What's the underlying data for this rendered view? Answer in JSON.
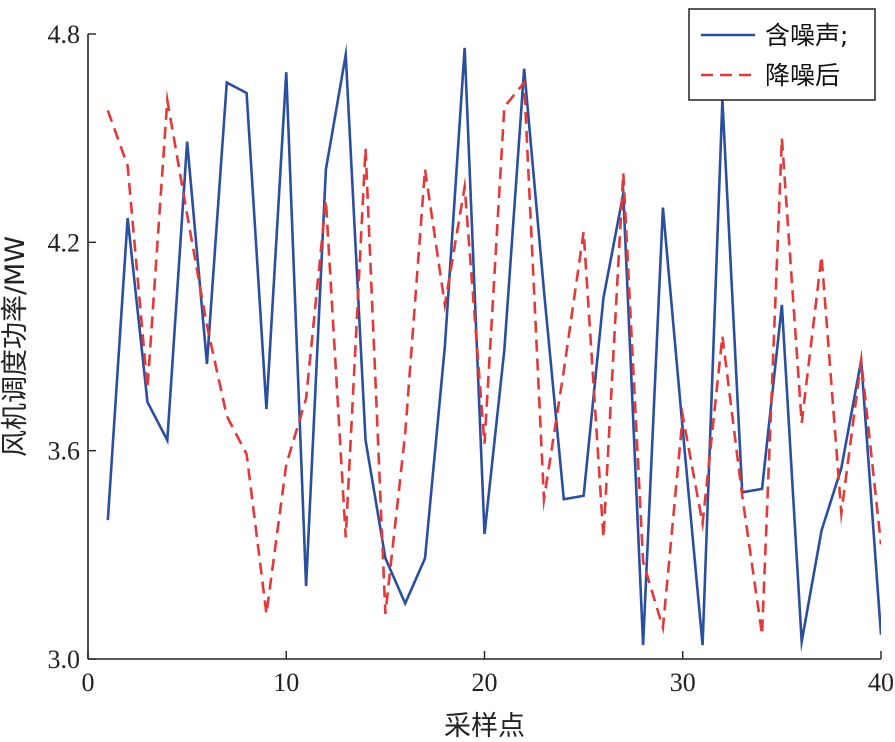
{
  "chart_data": {
    "type": "line",
    "title": "",
    "xlabel": "采样点",
    "ylabel": "风机调度功率/MW",
    "xlim": [
      0,
      40
    ],
    "ylim": [
      3.0,
      4.8
    ],
    "xticks": [
      0,
      10,
      20,
      30,
      40
    ],
    "xtick_labels": [
      "0",
      "10",
      "20",
      "30",
      "40"
    ],
    "yticks": [
      3.0,
      3.6,
      4.2,
      4.8
    ],
    "ytick_labels": [
      "3.0",
      "3.6",
      "4.2",
      "4.8"
    ],
    "grid": false,
    "legend_position": "top-right",
    "x": [
      1,
      2,
      3,
      4,
      5,
      6,
      7,
      8,
      9,
      10,
      11,
      12,
      13,
      14,
      15,
      16,
      17,
      18,
      19,
      20,
      21,
      22,
      23,
      24,
      25,
      26,
      27,
      28,
      29,
      30,
      31,
      32,
      33,
      34,
      35,
      36,
      37,
      38,
      39,
      40
    ],
    "series": [
      {
        "name": "含噪声;",
        "color": "#2b4f9e",
        "dash": "solid",
        "values": [
          3.4,
          4.27,
          3.74,
          3.63,
          4.49,
          3.85,
          4.66,
          4.63,
          3.72,
          4.69,
          3.21,
          4.41,
          4.74,
          3.63,
          3.29,
          3.16,
          3.29,
          3.9,
          4.76,
          3.36,
          3.89,
          4.7,
          4.06,
          3.46,
          3.47,
          4.04,
          4.34,
          3.04,
          4.3,
          3.66,
          3.04,
          4.61,
          3.48,
          3.49,
          4.02,
          3.05,
          3.37,
          3.55,
          3.86,
          3.07
        ]
      },
      {
        "name": "降噪后",
        "color": "#e03a3a",
        "dash": "dashed",
        "values": [
          4.58,
          4.42,
          3.78,
          4.61,
          4.28,
          3.96,
          3.7,
          3.59,
          3.13,
          3.56,
          3.75,
          4.32,
          3.35,
          4.47,
          3.13,
          3.65,
          4.41,
          4.02,
          4.36,
          3.62,
          4.59,
          4.66,
          3.46,
          3.83,
          4.23,
          3.35,
          4.4,
          3.28,
          3.09,
          3.7,
          3.39,
          3.93,
          3.47,
          3.07,
          4.5,
          3.68,
          4.16,
          3.42,
          3.86,
          3.33
        ]
      }
    ]
  }
}
